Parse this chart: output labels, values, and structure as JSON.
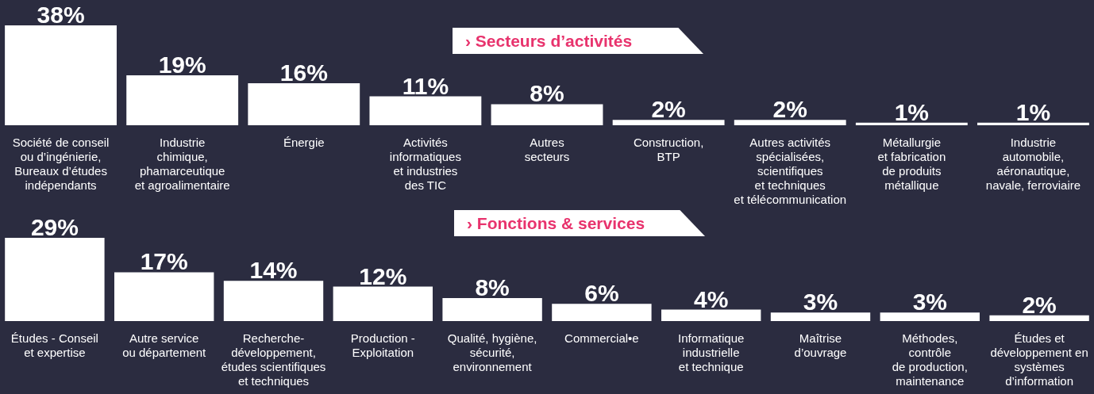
{
  "chart_data": [
    {
      "type": "bar",
      "title": "› Secteurs d’activités",
      "categories": [
        "Société de conseil\nou d’ingénierie,\nBureaux d’études\nindépendants",
        "Industrie\nchimique,\nphamarceutique\net agroalimentaire",
        "Énergie",
        "Activités\ninformatiques\net industries\ndes TIC",
        "Autres\nsecteurs",
        "Construction,\nBTP",
        "Autres activités\nspécialisées,\nscientifiques\net techniques\net télécommunication",
        "Métallurgie\net fabrication\nde produits\nmétallique",
        "Industrie\nautomobile,\naéronautique,\nnavale, ferroviaire"
      ],
      "values": [
        38,
        19,
        16,
        11,
        8,
        2,
        2,
        1,
        1
      ],
      "value_labels": [
        "38%",
        "19%",
        "16%",
        "11%",
        "8%",
        "2%",
        "2%",
        "1%",
        "1%"
      ],
      "color": "#ffffff"
    },
    {
      "type": "bar",
      "title": "› Fonctions & services",
      "categories": [
        "Études - Conseil\net expertise",
        "Autre service\nou département",
        "Recherche-\ndéveloppement,\nétudes scientifiques\net techniques",
        "Production -\nExploitation",
        "Qualité, hygiène,\nsécurité,\nenvironnement",
        "Commercial•e",
        "Informatique\nindustrielle\net technique",
        "Maîtrise\nd’ouvrage",
        "Méthodes,\ncontrôle\nde production,\nmaintenance",
        "Études et\ndéveloppement en\nsystèmes\nd’information"
      ],
      "values": [
        29,
        17,
        14,
        12,
        8,
        6,
        4,
        3,
        3,
        2
      ],
      "value_labels": [
        "29%",
        "17%",
        "14%",
        "12%",
        "8%",
        "6%",
        "4%",
        "3%",
        "3%",
        "2%"
      ],
      "color": "#ffffff"
    }
  ]
}
